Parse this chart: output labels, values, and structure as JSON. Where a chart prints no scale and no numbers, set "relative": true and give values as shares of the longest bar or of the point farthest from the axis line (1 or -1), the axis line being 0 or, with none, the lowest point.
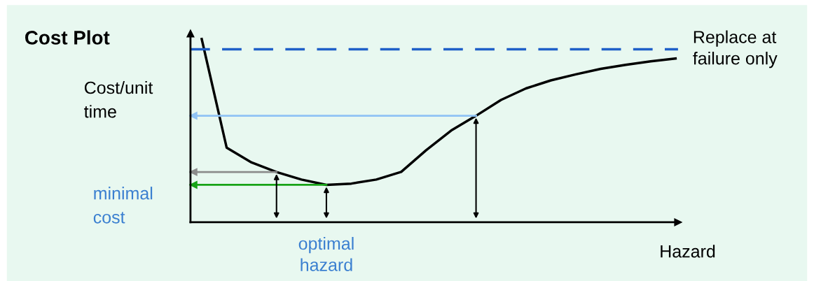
{
  "chart_data": {
    "type": "line",
    "title": "Cost Plot",
    "ylabel": "Cost/unit time",
    "xlabel": "Hazard",
    "relative": true,
    "categories": [
      null,
      null,
      null,
      null,
      null,
      null,
      null,
      null,
      null,
      null,
      null,
      null,
      null,
      null,
      null,
      null,
      null,
      null,
      null,
      null
    ],
    "series": [
      {
        "color": "#000000",
        "values": [
          1.0,
          0.407,
          0.326,
          0.274,
          0.233,
          0.204,
          0.211,
          0.233,
          0.275,
          0.393,
          0.5,
          0.581,
          0.667,
          0.73,
          0.774,
          0.807,
          0.837,
          0.859,
          0.878,
          0.893
        ]
      }
    ],
    "ref_lines": [
      {
        "axis": "y",
        "value": 0.944,
        "label": "Replace at failure only",
        "color": "#1f5fc8",
        "line_style": "dashed"
      },
      {
        "axis": "y",
        "value": 0.581,
        "color": "#8fc3f5",
        "line_style": "solid"
      },
      {
        "axis": "y",
        "value": 0.274,
        "color": "#8c8c8c",
        "line_style": "solid"
      },
      {
        "axis": "y",
        "value": 0.204,
        "label": "minimal cost",
        "color": "#17a317",
        "line_style": "solid"
      }
    ],
    "annotations": [
      "optimal hazard"
    ],
    "grid": false,
    "legend": false,
    "marker": "none",
    "line_style": "solid"
  }
}
